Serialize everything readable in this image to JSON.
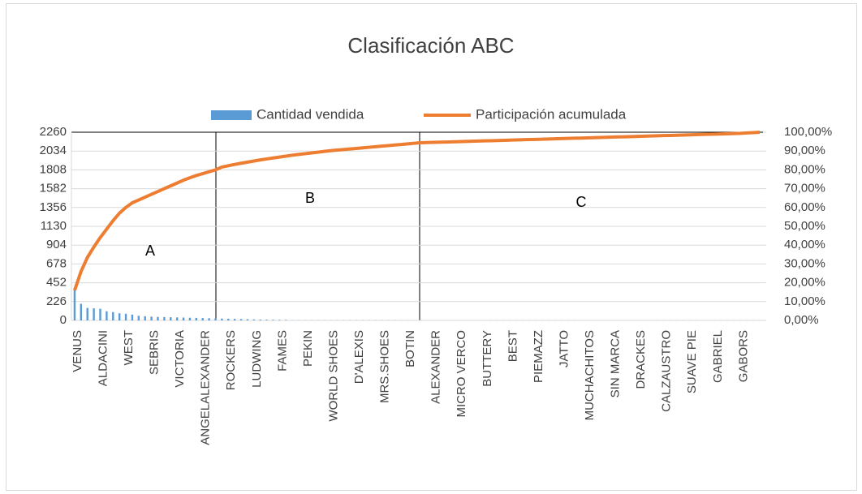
{
  "chart_data": {
    "type": "pareto",
    "title": "Clasificación ABC",
    "categories": [
      "VENUS",
      null,
      null,
      null,
      "ALDACINI",
      null,
      null,
      null,
      "WEST",
      null,
      null,
      null,
      "SEBRIS",
      null,
      null,
      null,
      "VICTORIA",
      null,
      null,
      null,
      "ANGELALEXANDER",
      null,
      null,
      null,
      "ROCKERS",
      null,
      null,
      null,
      "LUDWING",
      null,
      null,
      null,
      "FAMES",
      null,
      null,
      null,
      "PEKIN",
      null,
      null,
      null,
      "WORLD SHOES",
      null,
      null,
      null,
      "D'ALEXIS",
      null,
      null,
      null,
      "MRS.SHOES",
      null,
      null,
      null,
      "BOTIN",
      null,
      null,
      null,
      "ALEXANDER",
      null,
      null,
      null,
      "MICRO VERCO",
      null,
      null,
      null,
      "BUTTERY",
      null,
      null,
      null,
      "BEST",
      null,
      null,
      null,
      "PIEMAZZ",
      null,
      null,
      null,
      "JATTO",
      null,
      null,
      null,
      "MUCHACHITOS",
      null,
      null,
      null,
      "SIN MARCA",
      null,
      null,
      null,
      "DRACKES",
      null,
      null,
      null,
      "CALZAUSTRO",
      null,
      null,
      null,
      "SUAVE PIE",
      null,
      null,
      null,
      "GABRIEL",
      null,
      null,
      null,
      "GABORS",
      null,
      null,
      null
    ],
    "series": [
      {
        "name": "Cantidad vendida",
        "color": "#5b9bd5",
        "kind": "bar",
        "values": [
          370,
          200,
          150,
          145,
          140,
          110,
          100,
          85,
          80,
          70,
          55,
          50,
          45,
          42,
          40,
          38,
          36,
          34,
          32,
          30,
          28,
          26,
          24,
          22,
          20,
          18,
          16,
          14,
          12,
          10,
          9,
          8,
          7,
          6,
          2,
          2,
          2,
          2,
          2,
          2,
          2,
          2,
          2,
          2,
          2,
          2,
          2,
          2,
          2,
          2,
          2,
          1,
          1,
          1,
          1,
          1,
          1,
          1,
          1,
          1,
          1,
          1,
          1,
          1,
          1,
          1,
          1,
          1,
          1,
          1,
          1,
          1,
          1,
          1,
          1,
          1,
          1,
          1,
          1,
          1,
          1,
          1,
          1,
          1,
          1,
          1,
          1,
          1,
          1,
          1,
          1,
          1,
          1,
          1,
          1,
          1,
          1,
          1,
          1,
          1,
          1,
          1,
          1,
          1,
          1,
          1,
          1,
          1
        ]
      },
      {
        "name": "Participación acumulada",
        "color": "#ed7d31",
        "kind": "line",
        "axis": "y2",
        "values": [
          16,
          26,
          33.5,
          39,
          44,
          48.5,
          53,
          57,
          60,
          62.5,
          64,
          65.5,
          67,
          68.5,
          70,
          71.5,
          73,
          74.5,
          75.8,
          77,
          78,
          79,
          80,
          81.5,
          82.2,
          82.9,
          83.5,
          84.1,
          84.7,
          85.3,
          85.8,
          86.3,
          86.8,
          87.3,
          87.8,
          88.2,
          88.6,
          89.0,
          89.4,
          89.8,
          90.2,
          90.5,
          90.8,
          91.1,
          91.4,
          91.7,
          92.0,
          92.3,
          92.6,
          92.9,
          93.2,
          93.5,
          93.8,
          94.1,
          94.4,
          94.5,
          94.6,
          94.7,
          94.8,
          94.9,
          95.0,
          95.1,
          95.2,
          95.3,
          95.4,
          95.5,
          95.6,
          95.7,
          95.8,
          95.9,
          96.0,
          96.1,
          96.2,
          96.3,
          96.4,
          96.5,
          96.6,
          96.7,
          96.8,
          96.9,
          97.0,
          97.1,
          97.2,
          97.3,
          97.4,
          97.5,
          97.6,
          97.7,
          97.8,
          97.9,
          98.0,
          98.1,
          98.2,
          98.3,
          98.4,
          98.5,
          98.6,
          98.7,
          98.8,
          98.9,
          99.0,
          99.1,
          99.2,
          99.3,
          99.4,
          99.6,
          99.8,
          100
        ]
      }
    ],
    "ylim": [
      0,
      2260
    ],
    "yticks": [
      0,
      226,
      452,
      678,
      904,
      1130,
      1356,
      1582,
      1808,
      2034,
      2260
    ],
    "y2lim": [
      0,
      100
    ],
    "y2ticks": [
      {
        "value": 0,
        "label": "0,00%"
      },
      {
        "value": 10,
        "label": "10,00%"
      },
      {
        "value": 20,
        "label": "20,00%"
      },
      {
        "value": 30,
        "label": "30,00%"
      },
      {
        "value": 40,
        "label": "40,00%"
      },
      {
        "value": 50,
        "label": "50,00%"
      },
      {
        "value": 60,
        "label": "60,00%"
      },
      {
        "value": 70,
        "label": "70,00%"
      },
      {
        "value": 80,
        "label": "80,00%"
      },
      {
        "value": 90,
        "label": "90,00%"
      },
      {
        "value": 100,
        "label": "100,00%"
      }
    ],
    "grid": true,
    "legend": "top",
    "annotations": [
      "A",
      "B",
      "C"
    ]
  }
}
